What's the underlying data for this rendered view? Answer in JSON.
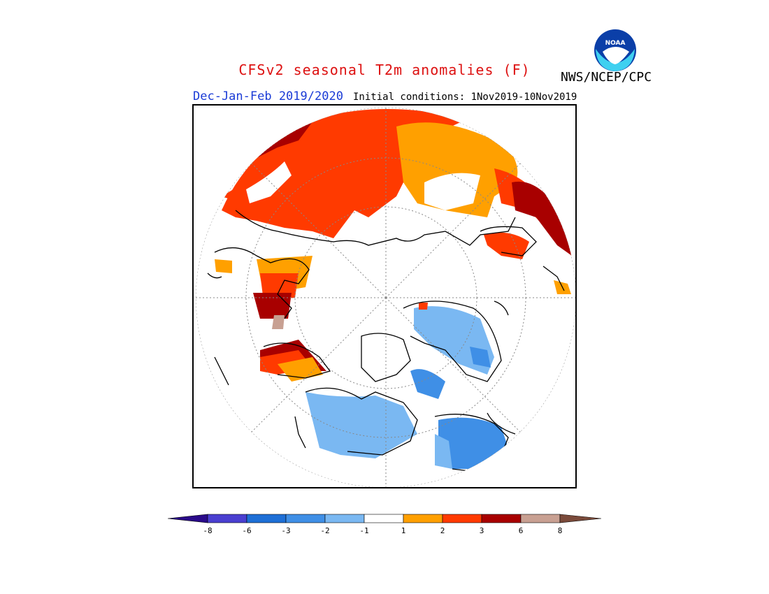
{
  "header": {
    "title": "CFSv2 seasonal T2m anomalies (F)",
    "agency": "NWS/NCEP/CPC",
    "period": "Dec-Jan-Feb 2019/2020",
    "initial_conditions": "Initial conditions: 1Nov2019-10Nov2019",
    "logo_text": "NOAA"
  },
  "colors": {
    "title": "#dd1111",
    "period": "#1a3bd6",
    "le_m8": "#2a0a8a",
    "m8_m6": "#4a3fd0",
    "m6_m3": "#1e6fd6",
    "m3_m2": "#3f8fe6",
    "m2_m1": "#7ab8f2",
    "m1_1": "#ffffff",
    "p1_2": "#ffa000",
    "p2_3": "#ff3a00",
    "p3_6": "#a80000",
    "p6_8": "#c8a092",
    "ge_8": "#7a4a3a"
  },
  "legend": {
    "ticks": [
      "-8",
      "-6",
      "-3",
      "-2",
      "-1",
      "1",
      "2",
      "3",
      "6",
      "8"
    ]
  }
}
